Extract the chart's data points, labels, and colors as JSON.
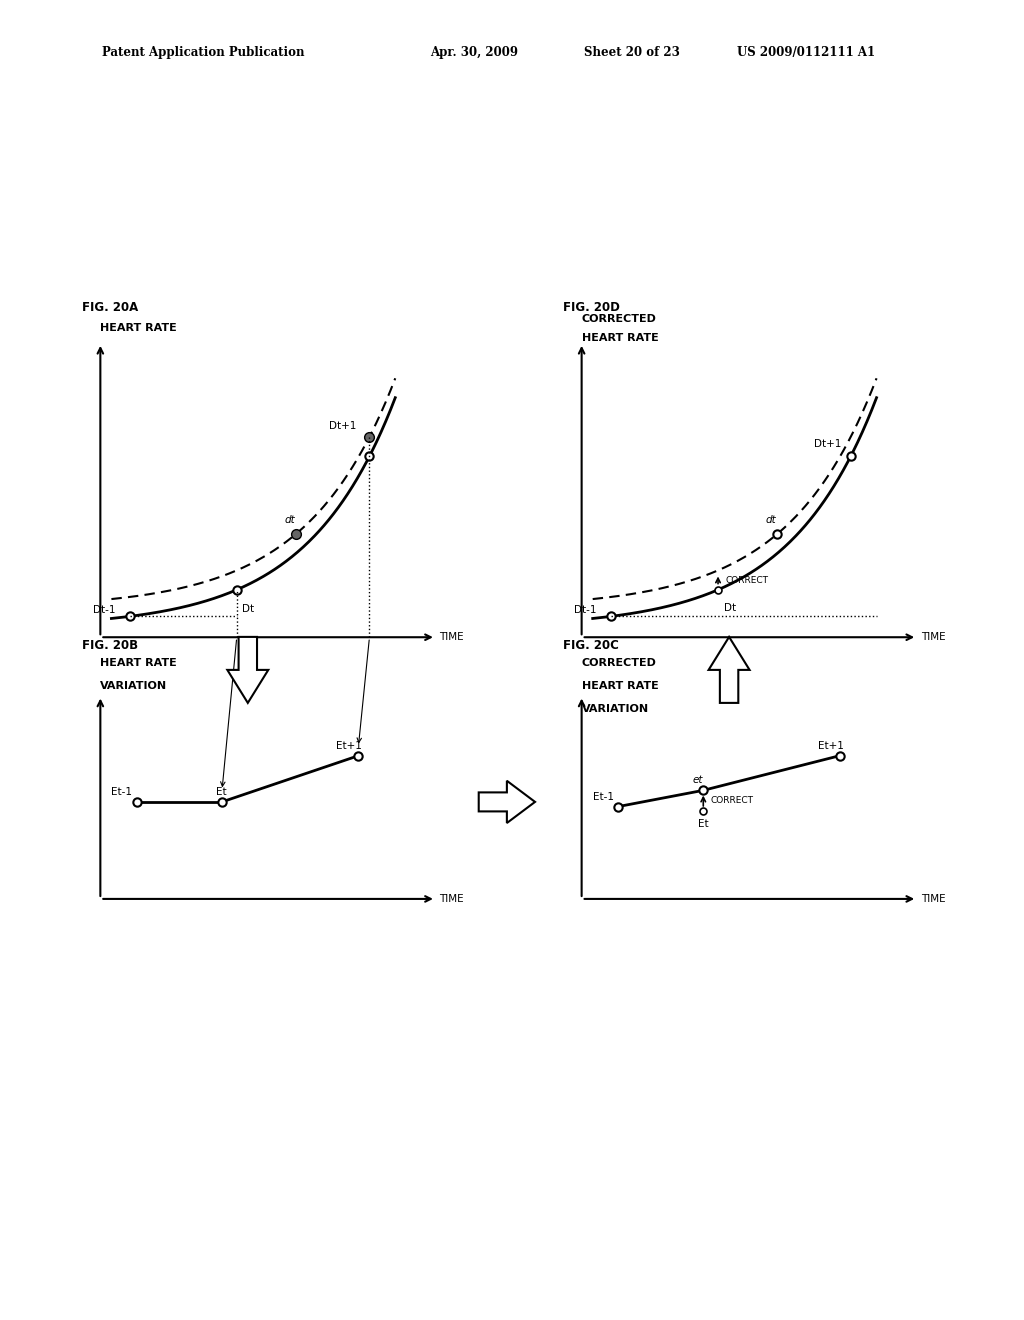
{
  "bg_color": "#ffffff",
  "header_text1": "Patent Application Publication",
  "header_text2": "Apr. 30, 2009",
  "header_text3": "Sheet 20 of 23",
  "header_text4": "US 2009/0112111 A1",
  "fig_label_fontsize": 8.5,
  "axis_label_fontsize": 7.5,
  "point_label_fontsize": 7.5,
  "header_fontsize": 8.5,
  "title_fontsize": 8
}
